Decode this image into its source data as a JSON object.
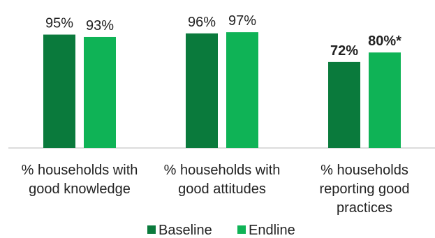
{
  "chart_data": {
    "type": "bar",
    "categories": [
      [
        "% households with",
        "good knowledge"
      ],
      [
        "% households with",
        "good attitudes"
      ],
      [
        "% households",
        "reporting good",
        "practices"
      ]
    ],
    "series": [
      {
        "name": "Baseline",
        "values": [
          95,
          96,
          72
        ],
        "labels": [
          "95%",
          "96%",
          "72%"
        ],
        "bold": [
          false,
          false,
          true
        ],
        "color": "#0a7a3c"
      },
      {
        "name": "Endline",
        "values": [
          93,
          97,
          80
        ],
        "labels": [
          "93%",
          "97%",
          "80%*"
        ],
        "bold": [
          false,
          false,
          true
        ],
        "color": "#0fb356"
      }
    ],
    "ylim": [
      0,
      100
    ],
    "grid": false,
    "legend_position": "bottom",
    "axis_color": "#c8c8c8",
    "label_color": "#222222"
  }
}
